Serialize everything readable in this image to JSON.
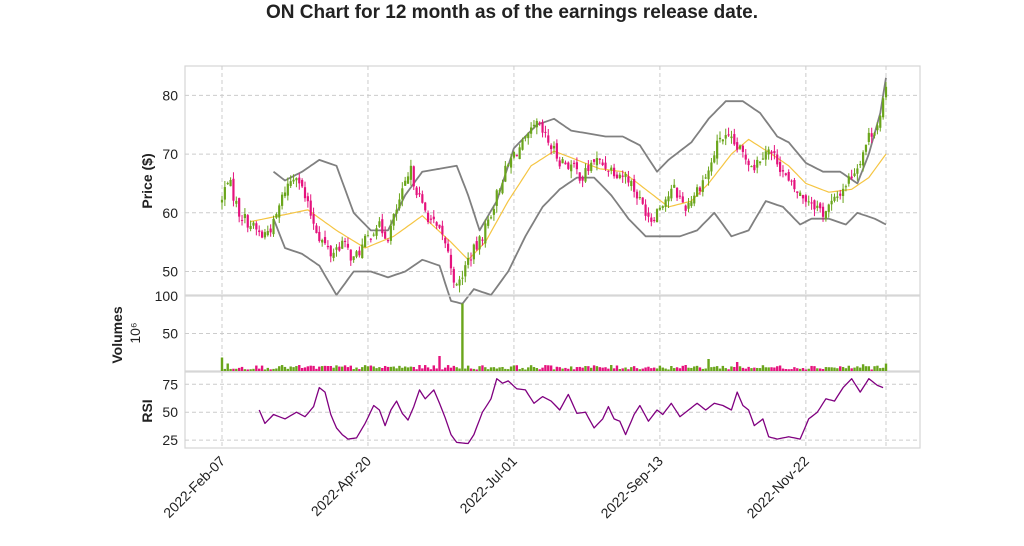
{
  "title": "ON Chart for 12 month as of the earnings release date.",
  "chart_data": {
    "type": "candlestick",
    "title": "ON Chart for 12 month as of the earnings release date.",
    "x_ticks": [
      "2022-Feb-07",
      "2022-Apr-20",
      "2022-Jul-01",
      "2022-Sep-13",
      "2022-Nov-22"
    ],
    "colors": {
      "up": "#6aa51b",
      "down": "#e5127d",
      "band": "#808080",
      "ma": "#f5c542",
      "rsi": "#800080"
    },
    "panels": [
      {
        "name": "price",
        "ylabel": "Price ($)",
        "ylim": [
          46,
          85
        ],
        "yticks": [
          "50",
          "60",
          "70",
          "80"
        ],
        "close_keypoints": [
          [
            0,
            62
          ],
          [
            2,
            66
          ],
          [
            6,
            60
          ],
          [
            10,
            58
          ],
          [
            14,
            56
          ],
          [
            18,
            58
          ],
          [
            22,
            64
          ],
          [
            26,
            67
          ],
          [
            30,
            61
          ],
          [
            34,
            56
          ],
          [
            38,
            53
          ],
          [
            42,
            55
          ],
          [
            46,
            52
          ],
          [
            50,
            55
          ],
          [
            54,
            58
          ],
          [
            58,
            56
          ],
          [
            62,
            62
          ],
          [
            66,
            67
          ],
          [
            70,
            61
          ],
          [
            74,
            58
          ],
          [
            78,
            55
          ],
          [
            82,
            47
          ],
          [
            86,
            52
          ],
          [
            90,
            55
          ],
          [
            94,
            60
          ],
          [
            98,
            66
          ],
          [
            102,
            70
          ],
          [
            106,
            72
          ],
          [
            110,
            75
          ],
          [
            114,
            72
          ],
          [
            118,
            69
          ],
          [
            122,
            68
          ],
          [
            126,
            66
          ],
          [
            130,
            69
          ],
          [
            134,
            68
          ],
          [
            138,
            67
          ],
          [
            142,
            66
          ],
          [
            146,
            62
          ],
          [
            150,
            59
          ],
          [
            154,
            62
          ],
          [
            158,
            64
          ],
          [
            162,
            61
          ],
          [
            166,
            64
          ],
          [
            170,
            67
          ],
          [
            174,
            73
          ],
          [
            178,
            72
          ],
          [
            182,
            70
          ],
          [
            186,
            68
          ],
          [
            190,
            71
          ],
          [
            194,
            69
          ],
          [
            198,
            65
          ],
          [
            202,
            63
          ],
          [
            206,
            62
          ],
          [
            210,
            60
          ],
          [
            214,
            62
          ],
          [
            218,
            65
          ],
          [
            222,
            68
          ],
          [
            226,
            73
          ],
          [
            230,
            76
          ],
          [
            232,
            81
          ]
        ],
        "ma_keypoints": [
          [
            10,
            58.5
          ],
          [
            20,
            59.5
          ],
          [
            30,
            60.5
          ],
          [
            40,
            57
          ],
          [
            50,
            54
          ],
          [
            60,
            56
          ],
          [
            70,
            59.5
          ],
          [
            80,
            55
          ],
          [
            86,
            52
          ],
          [
            92,
            55
          ],
          [
            100,
            62
          ],
          [
            108,
            68
          ],
          [
            116,
            70.5
          ],
          [
            124,
            69
          ],
          [
            132,
            67.5
          ],
          [
            140,
            67
          ],
          [
            148,
            64
          ],
          [
            156,
            61
          ],
          [
            164,
            62
          ],
          [
            170,
            65
          ],
          [
            178,
            70
          ],
          [
            184,
            72.5
          ],
          [
            192,
            70
          ],
          [
            198,
            68
          ],
          [
            204,
            65
          ],
          [
            212,
            63.5
          ],
          [
            220,
            64
          ],
          [
            226,
            66
          ],
          [
            232,
            70
          ]
        ],
        "upper_band_keypoints": [
          [
            18,
            67
          ],
          [
            22,
            65.5
          ],
          [
            28,
            67
          ],
          [
            34,
            69
          ],
          [
            40,
            68
          ],
          [
            46,
            60
          ],
          [
            52,
            57
          ],
          [
            58,
            57
          ],
          [
            64,
            63
          ],
          [
            70,
            67
          ],
          [
            76,
            67.5
          ],
          [
            82,
            68
          ],
          [
            86,
            63
          ],
          [
            90,
            57
          ],
          [
            96,
            62
          ],
          [
            102,
            71
          ],
          [
            110,
            75
          ],
          [
            116,
            76
          ],
          [
            122,
            74
          ],
          [
            128,
            73.5
          ],
          [
            134,
            73
          ],
          [
            140,
            73
          ],
          [
            146,
            71.5
          ],
          [
            152,
            67
          ],
          [
            156,
            69
          ],
          [
            164,
            72
          ],
          [
            170,
            76
          ],
          [
            176,
            79
          ],
          [
            182,
            79
          ],
          [
            188,
            77
          ],
          [
            194,
            73
          ],
          [
            198,
            72
          ],
          [
            204,
            68.5
          ],
          [
            210,
            67
          ],
          [
            216,
            67
          ],
          [
            222,
            65
          ],
          [
            226,
            70
          ],
          [
            230,
            77
          ],
          [
            232,
            83
          ]
        ],
        "lower_band_keypoints": [
          [
            18,
            59
          ],
          [
            22,
            54
          ],
          [
            28,
            53
          ],
          [
            34,
            51
          ],
          [
            40,
            46
          ],
          [
            46,
            50
          ],
          [
            52,
            50
          ],
          [
            58,
            49
          ],
          [
            64,
            50
          ],
          [
            70,
            52
          ],
          [
            76,
            51
          ],
          [
            80,
            45
          ],
          [
            84,
            44.5
          ],
          [
            88,
            47
          ],
          [
            94,
            46
          ],
          [
            100,
            50
          ],
          [
            106,
            56
          ],
          [
            112,
            61
          ],
          [
            118,
            64
          ],
          [
            124,
            66
          ],
          [
            130,
            66
          ],
          [
            136,
            63
          ],
          [
            142,
            59
          ],
          [
            148,
            56
          ],
          [
            154,
            56
          ],
          [
            160,
            56
          ],
          [
            166,
            57
          ],
          [
            172,
            60
          ],
          [
            178,
            56
          ],
          [
            184,
            57
          ],
          [
            190,
            62
          ],
          [
            196,
            61
          ],
          [
            202,
            58
          ],
          [
            206,
            59
          ],
          [
            212,
            59
          ],
          [
            218,
            58
          ],
          [
            222,
            60
          ],
          [
            228,
            59
          ],
          [
            232,
            58
          ]
        ]
      },
      {
        "name": "volume",
        "ylabel": "Volumes",
        "ylabel_unit": "10⁶",
        "ylim": [
          0,
          100
        ],
        "yticks": [
          "50",
          "100"
        ],
        "typical": [
          2,
          8
        ],
        "spikes": [
          [
            0,
            18
          ],
          [
            2,
            10
          ],
          [
            76,
            20
          ],
          [
            84,
            90
          ],
          [
            170,
            16
          ],
          [
            180,
            12
          ],
          [
            224,
            9
          ],
          [
            232,
            10
          ]
        ]
      },
      {
        "name": "rsi",
        "ylabel": "RSI",
        "ylim": [
          18,
          86
        ],
        "yticks": [
          "25",
          "50",
          "75"
        ],
        "rsi_keypoints": [
          [
            13,
            52
          ],
          [
            15,
            40
          ],
          [
            18,
            48
          ],
          [
            22,
            44
          ],
          [
            26,
            50
          ],
          [
            29,
            46
          ],
          [
            32,
            55
          ],
          [
            34,
            72
          ],
          [
            36,
            68
          ],
          [
            38,
            48
          ],
          [
            40,
            36
          ],
          [
            42,
            30
          ],
          [
            44,
            26
          ],
          [
            47,
            27
          ],
          [
            50,
            40
          ],
          [
            53,
            56
          ],
          [
            55,
            52
          ],
          [
            57,
            38
          ],
          [
            59,
            52
          ],
          [
            61,
            60
          ],
          [
            63,
            49
          ],
          [
            65,
            43
          ],
          [
            67,
            55
          ],
          [
            69,
            70
          ],
          [
            71,
            62
          ],
          [
            74,
            70
          ],
          [
            76,
            58
          ],
          [
            78,
            45
          ],
          [
            80,
            30
          ],
          [
            82,
            23
          ],
          [
            86,
            22
          ],
          [
            88,
            30
          ],
          [
            91,
            50
          ],
          [
            94,
            62
          ],
          [
            96,
            80
          ],
          [
            98,
            76
          ],
          [
            100,
            78
          ],
          [
            103,
            71
          ],
          [
            106,
            70
          ],
          [
            109,
            58
          ],
          [
            112,
            64
          ],
          [
            115,
            60
          ],
          [
            118,
            52
          ],
          [
            121,
            66
          ],
          [
            124,
            49
          ],
          [
            127,
            50
          ],
          [
            130,
            36
          ],
          [
            133,
            44
          ],
          [
            135,
            55
          ],
          [
            137,
            44
          ],
          [
            139,
            42
          ],
          [
            141,
            30
          ],
          [
            144,
            48
          ],
          [
            146,
            56
          ],
          [
            149,
            42
          ],
          [
            152,
            52
          ],
          [
            154,
            48
          ],
          [
            157,
            58
          ],
          [
            160,
            46
          ],
          [
            163,
            52
          ],
          [
            166,
            58
          ],
          [
            169,
            52
          ],
          [
            172,
            58
          ],
          [
            175,
            56
          ],
          [
            178,
            52
          ],
          [
            180,
            68
          ],
          [
            182,
            56
          ],
          [
            184,
            52
          ],
          [
            186,
            38
          ],
          [
            189,
            44
          ],
          [
            191,
            28
          ],
          [
            194,
            26
          ],
          [
            198,
            28
          ],
          [
            202,
            26
          ],
          [
            205,
            44
          ],
          [
            208,
            50
          ],
          [
            211,
            62
          ],
          [
            214,
            60
          ],
          [
            217,
            72
          ],
          [
            220,
            80
          ],
          [
            223,
            68
          ],
          [
            226,
            80
          ],
          [
            229,
            74
          ],
          [
            231,
            72
          ]
        ]
      }
    ]
  }
}
